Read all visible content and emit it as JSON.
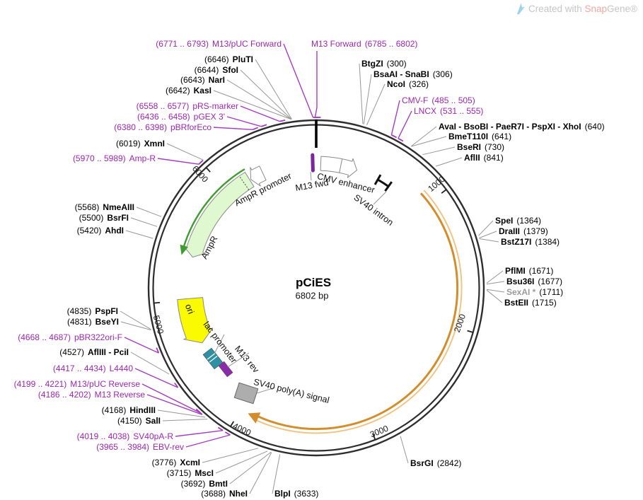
{
  "watermark": {
    "created_with": "Created with ",
    "brand_snap": "Snap",
    "brand_gene": "Gene®"
  },
  "plasmid": {
    "name": "pCiES",
    "size": "6802 bp",
    "length_bp": 6802
  },
  "tick_labels": [
    "1000",
    "2000",
    "3000",
    "4000",
    "5000",
    "6000"
  ],
  "colors": {
    "primer": "#9C27B0",
    "enzyme": "#000000",
    "backbone": "#2e2e2e",
    "orange_feature": "#D28E2E",
    "ampr_fill": "#DFF8D0",
    "ampr_line": "#3E9C30",
    "ori_fill": "#FAFA00",
    "lac_teal": "#2F8FA3",
    "marker_purple": "#7A24A0",
    "polya_gray": "#ADADAD"
  },
  "feature_labels": {
    "ampr_promoter": "AmpR promoter",
    "ampr": "AmpR",
    "m13_fwd": "M13 fwd",
    "cmv_enhancer": "CMV enhancer",
    "sv40_intron": "SV40 intron",
    "ori": "ori",
    "lac_promoter": "lac promoter",
    "m13_rev": "M13 rev",
    "sv40_polya": "SV40 poly(A) signal"
  },
  "labels": {
    "top_left": [
      {
        "pos": "(6771 .. 6793)",
        "name": "M13/pUC Forward",
        "kind": "primer"
      },
      {
        "pos": "(6646)",
        "name": "PluTI",
        "kind": "enzyme"
      },
      {
        "pos": "(6644)",
        "name": "SfoI",
        "kind": "enzyme"
      },
      {
        "pos": "(6643)",
        "name": "NarI",
        "kind": "enzyme"
      },
      {
        "pos": "(6642)",
        "name": "KasI",
        "kind": "enzyme"
      },
      {
        "pos": "(6558 .. 6577)",
        "name": "pRS-marker",
        "kind": "primer"
      },
      {
        "pos": "(6436 .. 6458)",
        "name": "pGEX 3'",
        "kind": "primer"
      },
      {
        "pos": "(6380 .. 6398)",
        "name": "pBRforEco",
        "kind": "primer"
      }
    ],
    "top_center": [
      {
        "name": "M13 Forward",
        "pos": "(6785 .. 6802)",
        "kind": "primer"
      }
    ],
    "top_right": [
      {
        "name": "BtgZI",
        "pos": "(300)",
        "kind": "enzyme"
      },
      {
        "name": "BsaAI - SnaBI",
        "pos": "(306)",
        "kind": "enzyme"
      },
      {
        "name": "NcoI",
        "pos": "(326)",
        "kind": "enzyme"
      },
      {
        "name": "CMV-F",
        "pos": "(485 .. 505)",
        "kind": "primer"
      },
      {
        "name": "LNCX",
        "pos": "(531 .. 555)",
        "kind": "primer"
      },
      {
        "name": "AvaI - BsoBI - PaeR7I - PspXI - XhoI",
        "pos": "(640)",
        "kind": "enzyme"
      },
      {
        "name": "BmeT110I",
        "pos": "(641)",
        "kind": "enzyme"
      },
      {
        "name": "BseRI",
        "pos": "(730)",
        "kind": "enzyme"
      },
      {
        "name": "AflII",
        "pos": "(841)",
        "kind": "enzyme"
      }
    ],
    "right": [
      {
        "name": "SpeI",
        "pos": "(1364)",
        "kind": "enzyme"
      },
      {
        "name": "DraIII",
        "pos": "(1379)",
        "kind": "enzyme"
      },
      {
        "name": "BstZ17I",
        "pos": "(1384)",
        "kind": "enzyme"
      },
      {
        "name": "PflMI",
        "pos": "(1671)",
        "kind": "enzyme"
      },
      {
        "name": "Bsu36I",
        "pos": "(1677)",
        "kind": "enzyme"
      },
      {
        "name": "SexAI *",
        "pos": "(1711)",
        "kind": "enzyme",
        "muted": true
      },
      {
        "name": "BstEII",
        "pos": "(1715)",
        "kind": "enzyme"
      },
      {
        "name": "BsrGI",
        "pos": "(2842)",
        "kind": "enzyme"
      }
    ],
    "left": [
      {
        "pos": "(6019)",
        "name": "XmnI",
        "kind": "enzyme"
      },
      {
        "pos": "(5970 .. 5989)",
        "name": "Amp-R",
        "kind": "primer"
      },
      {
        "pos": "(5568)",
        "name": "NmeAIII",
        "kind": "enzyme"
      },
      {
        "pos": "(5500)",
        "name": "BsrFI",
        "kind": "enzyme"
      },
      {
        "pos": "(5420)",
        "name": "AhdI",
        "kind": "enzyme"
      }
    ],
    "bottom_left": [
      {
        "pos": "(4835)",
        "name": "PspFI",
        "kind": "enzyme"
      },
      {
        "pos": "(4831)",
        "name": "BseYI",
        "kind": "enzyme"
      },
      {
        "pos": "(4668 .. 4687)",
        "name": "pBR322ori-F",
        "kind": "primer"
      },
      {
        "pos": "(4527)",
        "name": "AflIII - PciI",
        "kind": "enzyme"
      },
      {
        "pos": "(4417 .. 4434)",
        "name": "L4440",
        "kind": "primer"
      },
      {
        "pos": "(4199 .. 4221)",
        "name": "M13/pUC Reverse",
        "kind": "primer"
      },
      {
        "pos": "(4186 .. 4202)",
        "name": "M13 Reverse",
        "kind": "primer"
      },
      {
        "pos": "(4168)",
        "name": "HindIII",
        "kind": "enzyme"
      },
      {
        "pos": "(4150)",
        "name": "SalI",
        "kind": "enzyme"
      },
      {
        "pos": "(4019 .. 4038)",
        "name": "SV40pA-R",
        "kind": "primer"
      },
      {
        "pos": "(3965 .. 3984)",
        "name": "EBV-rev",
        "kind": "primer"
      },
      {
        "pos": "(3776)",
        "name": "XcmI",
        "kind": "enzyme"
      },
      {
        "pos": "(3715)",
        "name": "MscI",
        "kind": "enzyme"
      },
      {
        "pos": "(3692)",
        "name": "BmtI",
        "kind": "enzyme"
      },
      {
        "pos": "(3688)",
        "name": "NheI",
        "kind": "enzyme"
      }
    ],
    "bottom_center": [
      {
        "name": "BlpI",
        "pos": "(3633)",
        "kind": "enzyme"
      }
    ]
  }
}
